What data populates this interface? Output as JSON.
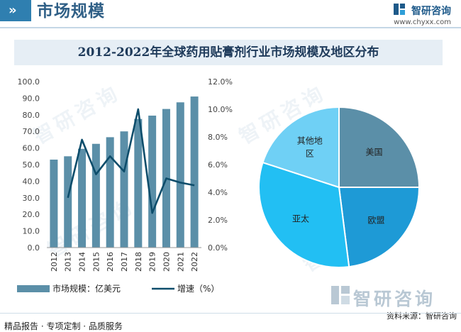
{
  "header": {
    "title": "市场规模",
    "brand_name": "智研咨询",
    "brand_url": "www.chyxx.com"
  },
  "footer": {
    "left": "精品报告 · 专项定制 · 品质服务",
    "source": "资料来源：智研咨询",
    "watermark": "智研咨询"
  },
  "colors": {
    "bar": "#5b8fa8",
    "line": "#0d4d6b",
    "title_bg": "#e6eef5",
    "accent": "#2f7fb0",
    "pie_us": "#5b8fa8",
    "pie_eu": "#1e9ad6",
    "pie_asia": "#22bff3",
    "pie_other": "#6fd0f5"
  },
  "chart_data": [
    {
      "type": "bar+line",
      "title": "2012-2022年全球药用贴膏剂行业市场规模及地区分布",
      "categories": [
        "2012",
        "2013",
        "2014",
        "2015",
        "2016",
        "2017",
        "2018",
        "2019",
        "2020",
        "2021",
        "2022"
      ],
      "series": [
        {
          "name": "市场规模：亿美元",
          "type": "bar",
          "axis": "left",
          "values": [
            53,
            55,
            59.5,
            62.5,
            66.5,
            70,
            77.5,
            79.5,
            83.5,
            87.5,
            91
          ]
        },
        {
          "name": "增速（%）",
          "type": "line",
          "axis": "right",
          "values": [
            null,
            3.6,
            7.8,
            5.3,
            6.6,
            5.5,
            10.0,
            2.5,
            5.0,
            4.7,
            4.5
          ]
        }
      ],
      "y_left": {
        "min": 0,
        "max": 100,
        "step": 10,
        "ticks": [
          "0.0",
          "10.0",
          "20.0",
          "30.0",
          "40.0",
          "50.0",
          "60.0",
          "70.0",
          "80.0",
          "90.0",
          "100.0"
        ]
      },
      "y_right": {
        "min": 0,
        "max": 12,
        "step": 2,
        "ticks": [
          "0.0%",
          "2.0%",
          "4.0%",
          "6.0%",
          "8.0%",
          "10.0%",
          "12.0%"
        ]
      },
      "legend": [
        "市场规模：亿美元",
        "增速（%）"
      ]
    },
    {
      "type": "pie",
      "slices": [
        {
          "label": "美国",
          "value": 25
        },
        {
          "label": "欧盟",
          "value": 23
        },
        {
          "label": "亚太",
          "value": 32
        },
        {
          "label": "其他地区",
          "label_lines": [
            "其他地",
            "区"
          ],
          "value": 20
        }
      ]
    }
  ]
}
